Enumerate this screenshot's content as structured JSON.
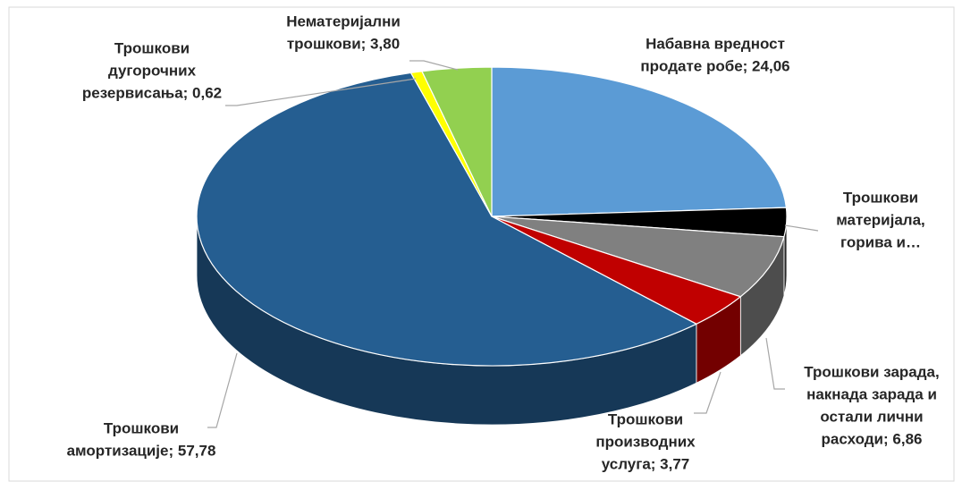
{
  "chart_data": {
    "type": "pie3d",
    "categories": [
      "Набавна вредност продате робе",
      "Трошкови материјала, горива и…",
      "Трошкови зарада, накнада зарада и остали лични расходи",
      "Трошкови производних услуга",
      "Трошкови амортизације",
      "Трошкови дугорочних резервисања",
      "Нематеријални трошкови"
    ],
    "values": [
      24.06,
      3.11,
      6.86,
      3.77,
      57.78,
      0.62,
      3.8
    ],
    "labels": [
      [
        "Набавна вредност",
        "продате робе; 24,06"
      ],
      [
        "Трошкови",
        "материјала,",
        "горива и…"
      ],
      [
        "Трошкови зарада,",
        "накнада зарада и",
        "остали лични",
        "расходи; 6,86"
      ],
      [
        "Трошкови",
        "производних",
        "услуга; 3,77"
      ],
      [
        "Трошкови",
        "амортизације; 57,78"
      ],
      [
        "Трошкови",
        "дугорочних",
        "резервисања; 0,62"
      ],
      [
        "Нематеријални",
        "трошкови; 3,80"
      ]
    ],
    "colors": [
      "#5b9bd5",
      "#000000",
      "#808080",
      "#c00000",
      "#255e91",
      "#ffff00",
      "#92d050"
    ]
  }
}
